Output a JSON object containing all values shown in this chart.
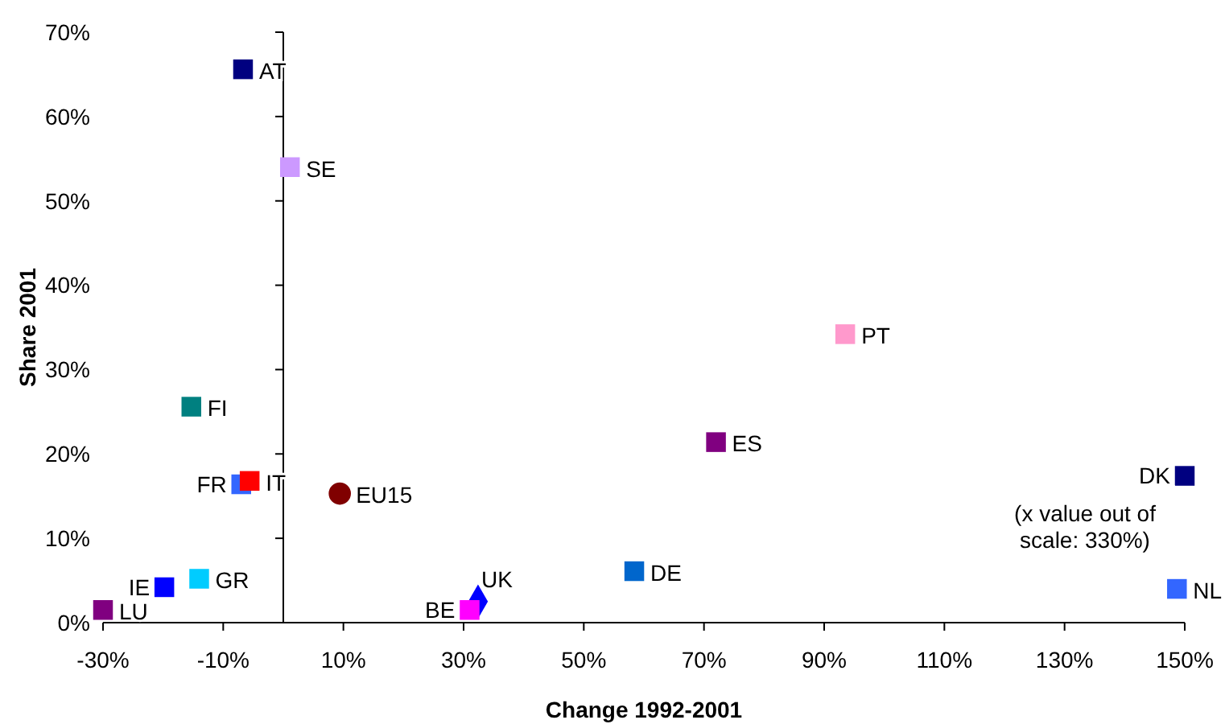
{
  "chart_data": {
    "type": "scatter",
    "xlabel": "Change 1992-2001",
    "ylabel": "Share 2001",
    "xlim": [
      -30,
      150
    ],
    "ylim": [
      0,
      70
    ],
    "xticks": [
      {
        "value": -30,
        "label": "-30%"
      },
      {
        "value": -10,
        "label": "-10%"
      },
      {
        "value": 10,
        "label": "10%"
      },
      {
        "value": 30,
        "label": "30%"
      },
      {
        "value": 50,
        "label": "50%"
      },
      {
        "value": 70,
        "label": "70%"
      },
      {
        "value": 90,
        "label": "90%"
      },
      {
        "value": 110,
        "label": "110%"
      },
      {
        "value": 130,
        "label": "130%"
      },
      {
        "value": 150,
        "label": "150%"
      }
    ],
    "yticks": [
      {
        "value": 0,
        "label": "0%"
      },
      {
        "value": 10,
        "label": "10%"
      },
      {
        "value": 20,
        "label": "20%"
      },
      {
        "value": 30,
        "label": "30%"
      },
      {
        "value": 40,
        "label": "40%"
      },
      {
        "value": 50,
        "label": "50%"
      },
      {
        "value": 60,
        "label": "60%"
      },
      {
        "value": 70,
        "label": "70%"
      }
    ],
    "grid": false,
    "series": [
      {
        "name": "AT",
        "color": "#000080",
        "marker": "square",
        "x": [
          -6.7
        ],
        "values": [
          65.6
        ]
      },
      {
        "name": "SE",
        "color": "#cc99ff",
        "marker": "square",
        "x": [
          1.1
        ],
        "values": [
          54
        ]
      },
      {
        "name": "PT",
        "color": "#ff99cc",
        "marker": "square",
        "x": [
          93.5
        ],
        "values": [
          34.2
        ]
      },
      {
        "name": "FI",
        "color": "#008080",
        "marker": "square",
        "x": [
          -15.3
        ],
        "values": [
          25.6
        ]
      },
      {
        "name": "ES",
        "color": "#800080",
        "marker": "square",
        "x": [
          72
        ],
        "values": [
          21.4
        ]
      },
      {
        "name": "DK",
        "color": "#000080",
        "marker": "square",
        "x": [
          150
        ],
        "values": [
          17.4
        ]
      },
      {
        "name": "FR",
        "color": "#3366ff",
        "marker": "square",
        "x": [
          -7
        ],
        "values": [
          16.4
        ]
      },
      {
        "name": "IT",
        "color": "#ff0000",
        "marker": "square",
        "x": [
          -5.6
        ],
        "values": [
          16.8
        ]
      },
      {
        "name": "EU15",
        "color": "#800000",
        "marker": "circle",
        "x": [
          9.4
        ],
        "values": [
          15.3
        ]
      },
      {
        "name": "DE",
        "color": "#0066cc",
        "marker": "square",
        "x": [
          58.4
        ],
        "values": [
          6.1
        ]
      },
      {
        "name": "NL",
        "color": "#3366ff",
        "marker": "square",
        "x": [
          148.7
        ],
        "values": [
          4
        ]
      },
      {
        "name": "UK",
        "color": "#0000ff",
        "marker": "diamond",
        "x": [
          32.4
        ],
        "values": [
          2.5
        ]
      },
      {
        "name": "BE",
        "color": "#ff00ff",
        "marker": "square",
        "x": [
          31
        ],
        "values": [
          1.5
        ]
      },
      {
        "name": "IE",
        "color": "#0000ff",
        "marker": "square",
        "x": [
          -19.8
        ],
        "values": [
          4.2
        ]
      },
      {
        "name": "GR",
        "color": "#00ccff",
        "marker": "square",
        "x": [
          -14
        ],
        "values": [
          5.2
        ]
      },
      {
        "name": "LU",
        "color": "#800080",
        "marker": "square",
        "x": [
          -30
        ],
        "values": [
          1.5
        ]
      }
    ],
    "annotations": [
      {
        "text": "(x value out of scale: 330%)",
        "x": 150,
        "y": 17.4
      }
    ]
  }
}
